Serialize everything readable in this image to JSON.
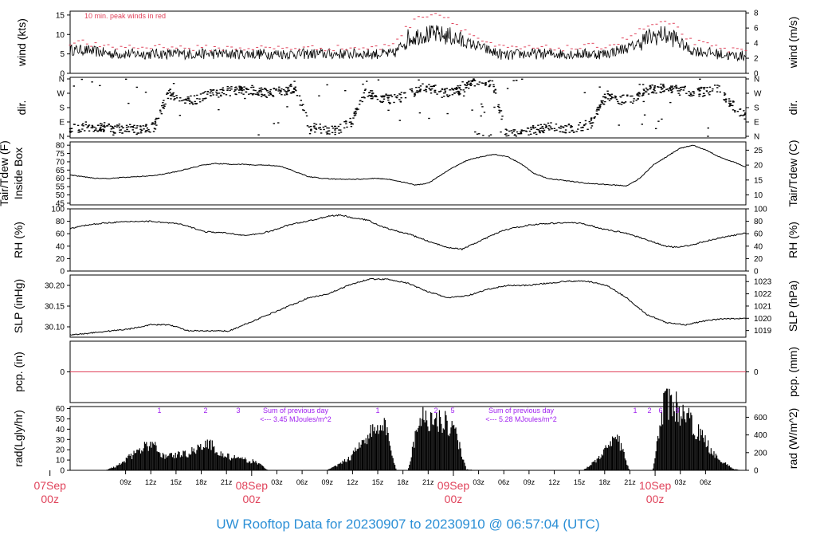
{
  "footer": {
    "title": "UW Rooftop Data for 20230907  to  20230910 @ 06:57:04  (UTC)"
  },
  "colors": {
    "footer": "#2b8fd6",
    "date_labels": "#e0435b",
    "peak_note": "#e0435b",
    "radiation_notes": "#a020f0",
    "zero_line": "#e0435b",
    "trace": "#000000"
  },
  "chart_data": [
    {
      "type": "line",
      "panel": "wind",
      "annotation": "10 min. peak winds in red",
      "ylabel_left": "wind (kts)",
      "ylabel_right": "wind (m/s)",
      "yticks_left": [
        "0",
        "5",
        "10",
        "15"
      ],
      "yticks_right": [
        "0",
        "2",
        "4",
        "6",
        "8"
      ],
      "ylim": [
        0,
        16
      ],
      "series": [
        {
          "values": [
            6,
            6,
            5.5,
            5,
            5,
            5,
            5,
            5,
            5,
            5,
            5,
            5,
            5,
            5,
            5,
            5,
            5,
            5,
            5,
            5,
            5,
            5,
            5,
            5,
            9,
            10,
            10,
            9.5,
            8,
            7,
            5.5,
            4.5,
            5,
            5,
            5,
            5,
            5,
            5,
            5,
            6,
            7,
            9,
            10,
            9,
            6,
            5.5,
            5,
            4.5,
            4.5
          ]
        },
        {
          "values": [
            8,
            8,
            7,
            6.5,
            7,
            6.5,
            7,
            7,
            6.5,
            6.5,
            6.5,
            6.5,
            6.5,
            6.5,
            6.5,
            6.5,
            6.5,
            6.5,
            6.5,
            6.5,
            6.5,
            6.5,
            6.5,
            8,
            12,
            15,
            15.5,
            14,
            11,
            9,
            7,
            6.5,
            6.5,
            6.5,
            6.5,
            6.5,
            6.5,
            7,
            7,
            8,
            10,
            12,
            13,
            12,
            8.5,
            7.5,
            6.5,
            6,
            6
          ]
        }
      ]
    },
    {
      "type": "scatter",
      "panel": "direction",
      "ylabel_left": "dir.",
      "ylabel_right": "dir.",
      "yticks_left": [
        "N",
        "E",
        "S",
        "W",
        "N"
      ],
      "yticks_right": [
        "N",
        "E",
        "S",
        "W",
        "N"
      ],
      "ylim": [
        0,
        360
      ],
      "values": [
        45,
        60,
        60,
        50,
        45,
        40,
        60,
        270,
        230,
        230,
        270,
        280,
        290,
        290,
        270,
        285,
        300,
        60,
        45,
        40,
        90,
        270,
        240,
        230,
        260,
        300,
        290,
        270,
        300,
        350,
        340,
        10,
        20,
        40,
        60,
        50,
        50,
        80,
        240,
        230,
        230,
        290,
        300,
        290,
        280,
        280,
        300,
        200,
        120
      ]
    },
    {
      "type": "line",
      "panel": "temperature",
      "ylabel_left": "Tair/Tdew (F)\nInside Box",
      "ylabel_right": "Tair/Tdew (C)",
      "yticks_left": [
        "45",
        "50",
        "55",
        "60",
        "65",
        "70",
        "75",
        "80"
      ],
      "yticks_right": [
        "10",
        "15",
        "20",
        "25"
      ],
      "ylim": [
        44,
        82
      ],
      "series": [
        {
          "values": [
            62,
            61,
            60,
            60,
            60.5,
            61,
            61.5,
            62.5,
            64,
            66,
            68,
            69,
            68.5,
            68.5,
            68,
            68,
            67,
            64,
            61,
            60,
            59.5,
            59.5,
            59.5,
            60,
            59.5,
            58,
            56,
            57,
            62,
            67,
            71,
            73,
            74.5,
            73,
            69,
            63,
            60,
            59,
            58,
            57,
            56.5,
            56,
            55.5,
            60,
            68,
            73,
            78,
            80,
            77,
            73,
            70,
            67
          ]
        }
      ]
    },
    {
      "type": "line",
      "panel": "relative_humidity",
      "ylabel_left": "RH (%)",
      "ylabel_right": "RH (%)",
      "yticks_left": [
        "0",
        "20",
        "40",
        "60",
        "80",
        "100"
      ],
      "yticks_right": [
        "0",
        "20",
        "40",
        "60",
        "80",
        "100"
      ],
      "ylim": [
        0,
        100
      ],
      "series": [
        {
          "values": [
            68,
            73,
            76,
            78,
            79,
            80,
            80,
            78,
            76,
            70,
            63,
            62,
            60,
            57,
            60,
            65,
            73,
            78,
            82,
            88,
            90,
            85,
            82,
            72,
            65,
            60,
            52,
            44,
            38,
            35,
            45,
            55,
            65,
            70,
            74,
            76,
            77,
            78,
            76,
            70,
            65,
            62,
            55,
            48,
            40,
            38,
            42,
            48,
            53,
            57,
            61
          ]
        }
      ]
    },
    {
      "type": "line",
      "panel": "pressure",
      "ylabel_left": "SLP (inHg)",
      "ylabel_right": "SLP (hPa)",
      "yticks_left": [
        "30.10",
        "30.15",
        "30.20"
      ],
      "yticks_right": [
        "1019",
        "1020",
        "1021",
        "1022",
        "1023"
      ],
      "ylim": [
        30.075,
        30.225
      ],
      "series": [
        {
          "values": [
            30.08,
            30.085,
            30.09,
            30.095,
            30.105,
            30.105,
            30.09,
            30.09,
            30.09,
            30.11,
            30.13,
            30.15,
            30.17,
            30.18,
            30.2,
            30.215,
            30.215,
            30.205,
            30.185,
            30.17,
            30.175,
            30.19,
            30.2,
            30.2,
            30.205,
            30.21,
            30.21,
            30.2,
            30.17,
            30.13,
            30.11,
            30.105,
            30.115,
            30.12,
            30.12
          ]
        }
      ]
    },
    {
      "type": "line",
      "panel": "precipitation",
      "ylabel_left": "pcp. (in)",
      "ylabel_right": "pcp. (mm)",
      "yticks_left": [
        "0"
      ],
      "yticks_right": [
        "0"
      ],
      "ylim": [
        -1,
        1
      ],
      "series": [
        {
          "values": [
            0,
            0
          ]
        }
      ]
    },
    {
      "type": "bar",
      "panel": "radiation",
      "ylabel_left": "rad(Lgly/hr)",
      "ylabel_right": "rad (W/m^2)",
      "yticks_left": [
        "0",
        "10",
        "20",
        "30",
        "40",
        "50",
        "60"
      ],
      "yticks_right": [
        "0",
        "200",
        "400",
        "600"
      ],
      "ylim": [
        0,
        62
      ],
      "values": [
        0,
        0,
        0,
        0,
        4,
        12,
        20,
        26,
        14,
        15,
        16,
        22,
        26,
        15,
        12,
        10,
        8,
        0,
        0,
        0,
        0,
        0,
        0,
        5,
        12,
        28,
        38,
        44,
        0,
        0,
        52,
        50,
        48,
        40,
        1,
        0,
        0,
        0,
        0,
        0,
        0,
        0,
        0,
        0,
        0,
        8,
        20,
        32,
        0,
        0,
        0,
        66,
        62,
        50,
        36,
        20,
        8,
        1,
        0
      ],
      "day1_markers": [
        "1",
        "2",
        "3"
      ],
      "day2_markers": [
        "1",
        "2",
        "5"
      ],
      "day3_markers": [
        "1",
        "2",
        "6",
        "9"
      ],
      "notes": [
        {
          "line1": "Sum of previous day",
          "line2": "<--- 3.45 MJoules/m^2"
        },
        {
          "line1": "Sum of previous day",
          "line2": "<--- 5.28 MJoules/m^2"
        }
      ]
    }
  ],
  "x_axis": {
    "hour_labels": [
      "09z",
      "12z",
      "15z",
      "18z",
      "21z",
      "03z",
      "06z",
      "09z",
      "12z",
      "15z",
      "18z",
      "21z",
      "03z",
      "06z",
      "09z",
      "12z",
      "15z",
      "18z",
      "21z",
      "03z",
      "06z"
    ],
    "date_labels": [
      {
        "day": "07Sep",
        "hour": "00z"
      },
      {
        "day": "08Sep",
        "hour": "00z"
      },
      {
        "day": "09Sep",
        "hour": "00z"
      },
      {
        "day": "10Sep",
        "hour": "00z"
      }
    ]
  }
}
